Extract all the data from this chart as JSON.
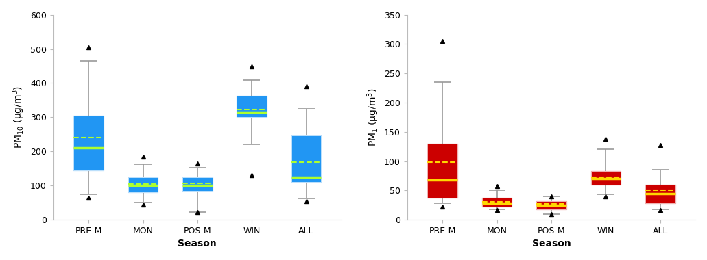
{
  "pm10": {
    "categories": [
      "PRE-M",
      "MON",
      "POS-M",
      "WIN",
      "ALL"
    ],
    "boxes": [
      {
        "q1": 145,
        "med": 210,
        "mean": 240,
        "q3": 305,
        "whislo": 75,
        "whishi": 465,
        "fliers_low": [
          65
        ],
        "fliers_high": [
          505
        ]
      },
      {
        "q1": 80,
        "med": 100,
        "mean": 105,
        "q3": 125,
        "whislo": 50,
        "whishi": 163,
        "fliers_low": [
          45
        ],
        "fliers_high": [
          185
        ]
      },
      {
        "q1": 85,
        "med": 100,
        "mean": 107,
        "q3": 125,
        "whislo": 22,
        "whishi": 153,
        "fliers_low": [
          22
        ],
        "fliers_high": [
          165
        ]
      },
      {
        "q1": 300,
        "med": 315,
        "mean": 323,
        "q3": 362,
        "whislo": 220,
        "whishi": 408,
        "fliers_low": [
          130
        ],
        "fliers_high": [
          450
        ]
      },
      {
        "q1": 110,
        "med": 125,
        "mean": 168,
        "q3": 247,
        "whislo": 62,
        "whishi": 325,
        "fliers_low": [
          55
        ],
        "fliers_high": [
          390
        ]
      }
    ],
    "ylabel": "PM$_{10}$ (μg/m$^{3}$)",
    "xlabel": "Season",
    "ylim": [
      0,
      600
    ],
    "yticks": [
      0,
      100,
      200,
      300,
      400,
      500,
      600
    ],
    "box_color": "#2196F3",
    "median_color": "#ADFF2F",
    "mean_color": "#ADFF2F",
    "whisker_color": "#999999",
    "flier_color": "black"
  },
  "pm1": {
    "categories": [
      "PRE-M",
      "MON",
      "POS-M",
      "WIN",
      "ALL"
    ],
    "boxes": [
      {
        "q1": 38,
        "med": 68,
        "mean": 98,
        "q3": 130,
        "whislo": 28,
        "whishi": 235,
        "fliers_low": [
          22
        ],
        "fliers_high": [
          305
        ]
      },
      {
        "q1": 22,
        "med": 28,
        "mean": 30,
        "q3": 37,
        "whislo": 18,
        "whishi": 50,
        "fliers_low": [
          16
        ],
        "fliers_high": [
          57
        ]
      },
      {
        "q1": 18,
        "med": 25,
        "mean": 27,
        "q3": 32,
        "whislo": 10,
        "whishi": 40,
        "fliers_low": [
          10
        ],
        "fliers_high": [
          40
        ]
      },
      {
        "q1": 60,
        "med": 70,
        "mean": 72,
        "q3": 83,
        "whislo": 43,
        "whishi": 120,
        "fliers_low": [
          40
        ],
        "fliers_high": [
          138
        ]
      },
      {
        "q1": 28,
        "med": 45,
        "mean": 50,
        "q3": 60,
        "whislo": 18,
        "whishi": 85,
        "fliers_low": [
          17
        ],
        "fliers_high": [
          128
        ]
      }
    ],
    "ylabel": "PM$_{1}$ (μg/m$^{3}$)",
    "xlabel": "Season",
    "ylim": [
      0,
      350
    ],
    "yticks": [
      0,
      50,
      100,
      150,
      200,
      250,
      300,
      350
    ],
    "box_color": "#CC0000",
    "median_color": "#FFD700",
    "mean_color": "#FFD700",
    "whisker_color": "#999999",
    "flier_color": "black"
  },
  "fig_width": 10.31,
  "fig_height": 3.8,
  "dpi": 100
}
